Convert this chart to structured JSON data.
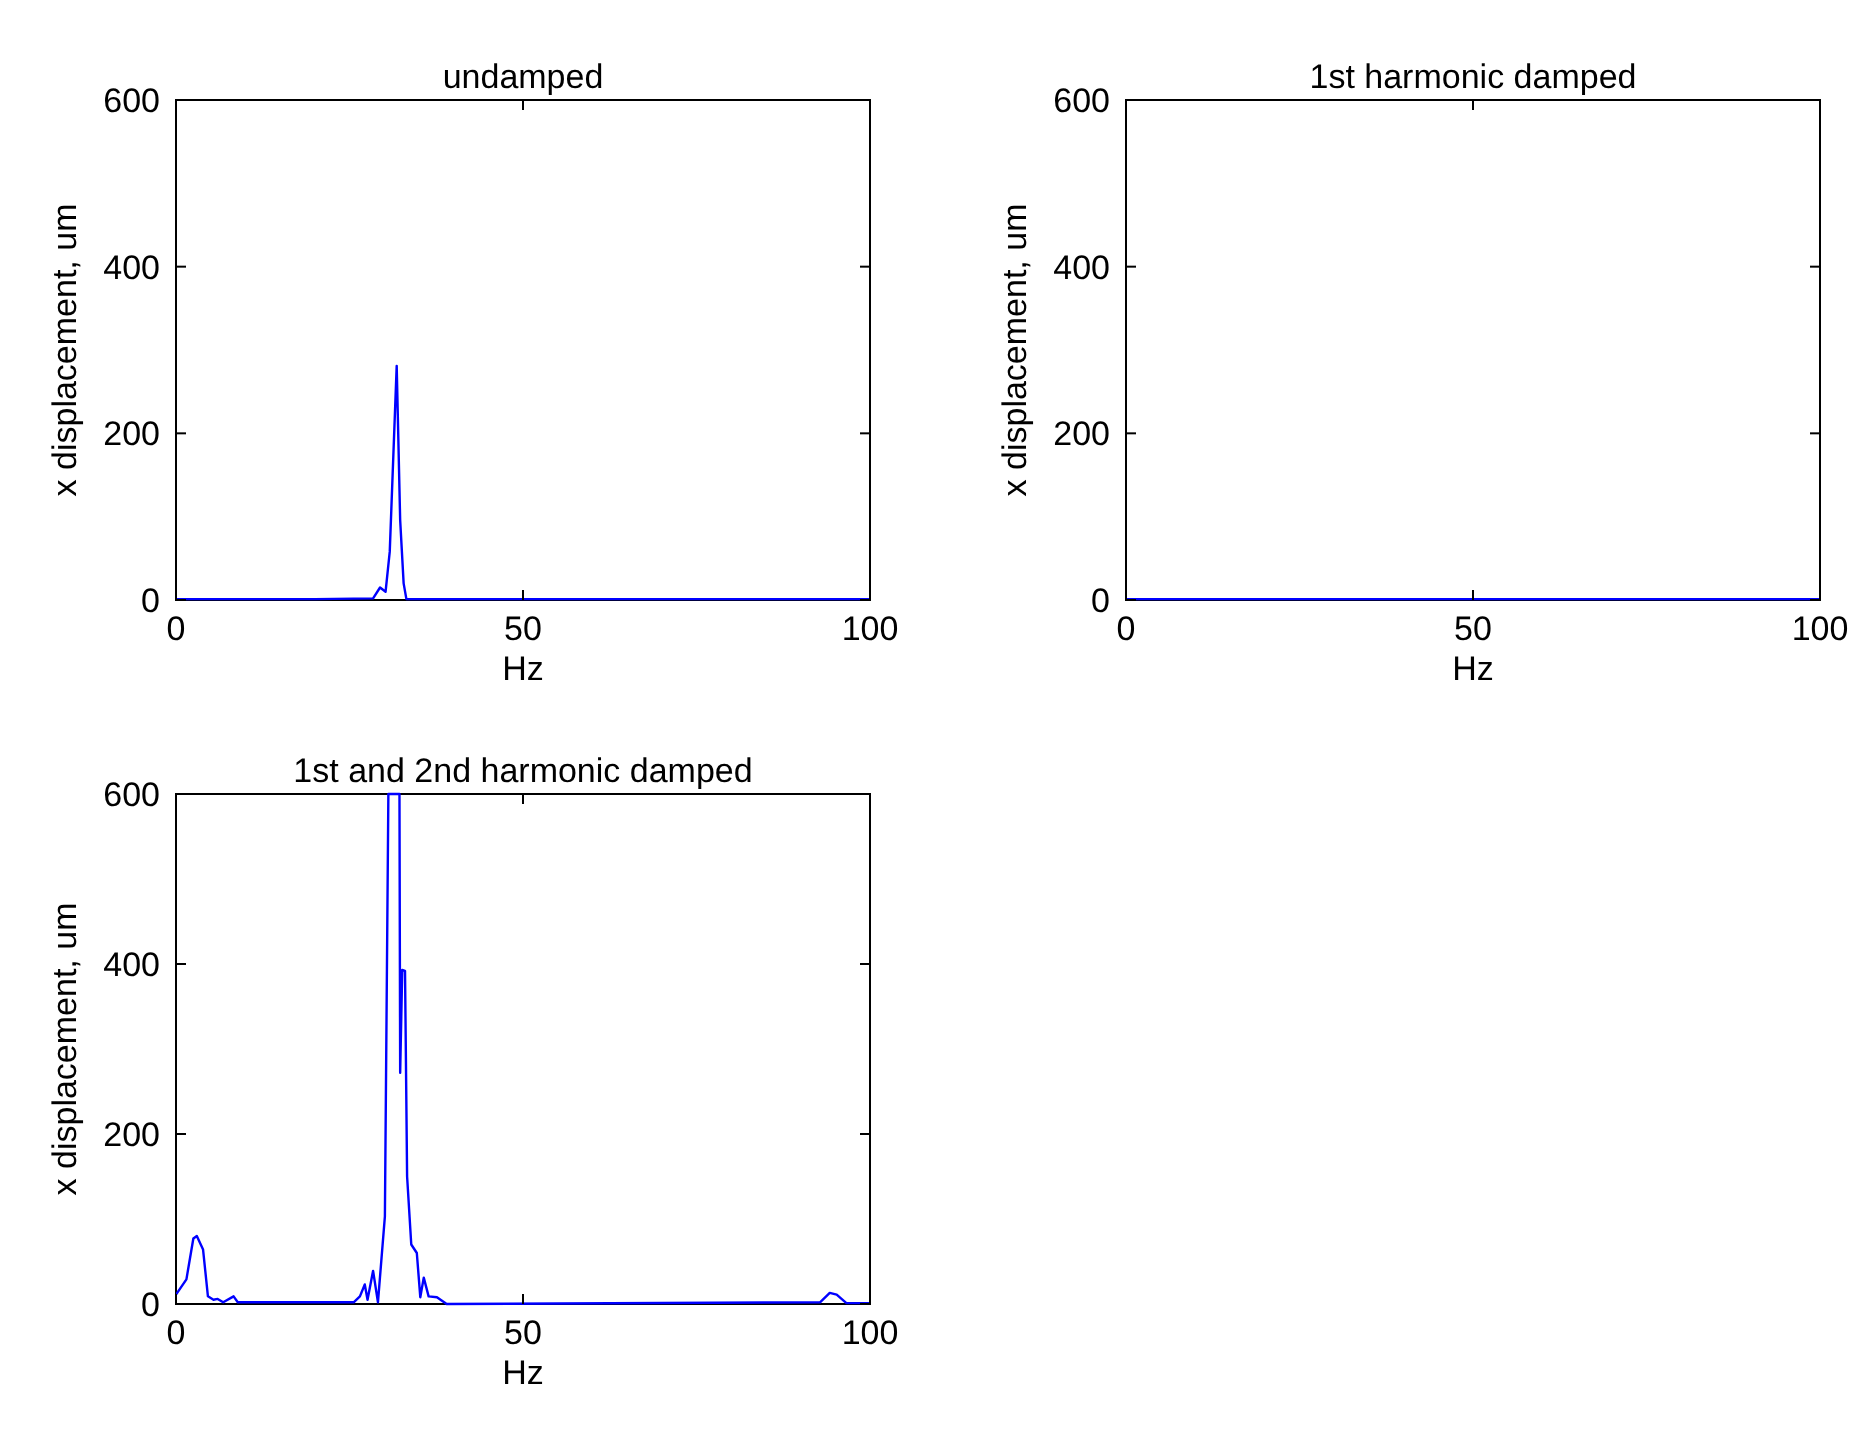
{
  "chart_data": [
    {
      "type": "line",
      "title": "undamped",
      "xlabel": "Hz",
      "ylabel": "x displacement, um",
      "xlim": [
        0,
        100
      ],
      "ylim": [
        0,
        600
      ],
      "xticks": [
        0,
        50,
        100
      ],
      "yticks": [
        0,
        200,
        400,
        600
      ],
      "grid": false,
      "series": [
        {
          "color": "#0000ff",
          "x": [
            0,
            10,
            20,
            28.4,
            29.4,
            30.2,
            30.8,
            31.8,
            32.3,
            32.8,
            33.2,
            40,
            60,
            80,
            100
          ],
          "values": [
            1,
            1,
            1,
            2,
            15,
            10,
            58,
            281,
            96,
            20,
            1,
            1,
            1,
            1,
            1
          ]
        }
      ]
    },
    {
      "type": "line",
      "title": "1st harmonic damped",
      "xlabel": "Hz",
      "ylabel": "x displacement, um",
      "xlim": [
        0,
        100
      ],
      "ylim": [
        0,
        600
      ],
      "xticks": [
        0,
        50,
        100
      ],
      "yticks": [
        0,
        200,
        400,
        600
      ],
      "grid": false,
      "series": [
        {
          "color": "#0000ff",
          "x": [
            0,
            25,
            50,
            75,
            100
          ],
          "values": [
            1,
            1,
            1,
            1,
            1
          ]
        }
      ]
    },
    {
      "type": "line",
      "title": "1st and 2nd harmonic damped",
      "xlabel": "Hz",
      "ylabel": "x displacement, um",
      "xlim": [
        0,
        100
      ],
      "ylim": [
        0,
        600
      ],
      "xticks": [
        0,
        50,
        100
      ],
      "yticks": [
        0,
        200,
        400,
        600
      ],
      "grid": false,
      "series": [
        {
          "color": "#0000ff",
          "x": [
            0,
            1.5,
            2.5,
            3.0,
            3.9,
            4.6,
            5.4,
            6.0,
            6.8,
            8.3,
            8.9,
            25.6,
            26.5,
            27.2,
            27.6,
            28.4,
            29.1,
            30.1,
            30.6,
            31.5,
            32.2,
            32.3,
            32.6,
            33.0,
            33.3,
            33.9,
            34.7,
            35.2,
            35.7,
            36.4,
            37.6,
            39.0,
            92.8,
            94.2,
            95.2,
            96.6,
            100
          ],
          "values": [
            11,
            29,
            77,
            80,
            64,
            9,
            5,
            6,
            2,
            9,
            2,
            2,
            9,
            23,
            5,
            39,
            2,
            103,
            600,
            600,
            600,
            272,
            393,
            392,
            150,
            70,
            60,
            8,
            31,
            9,
            8,
            0,
            2,
            13,
            11,
            1,
            1
          ]
        }
      ]
    }
  ]
}
